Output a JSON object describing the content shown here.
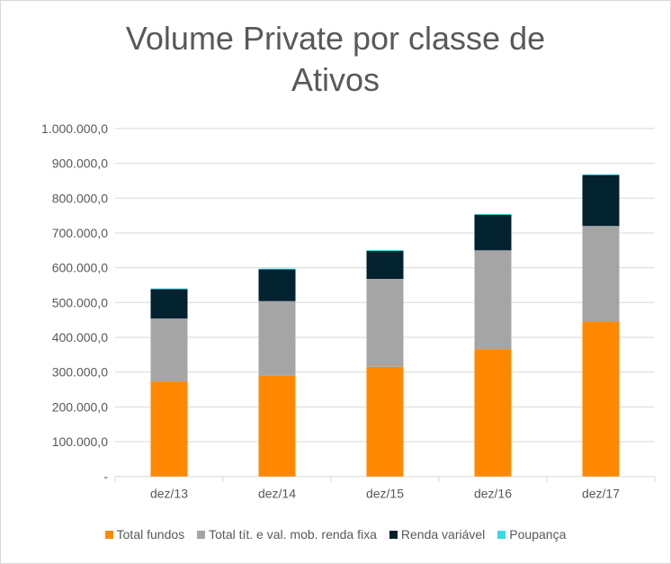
{
  "chart_data": {
    "type": "bar",
    "stacked": true,
    "title_lines": [
      "Volume Private por classe de",
      "Ativos"
    ],
    "categories": [
      "dez/13",
      "dez/14",
      "dez/15",
      "dez/16",
      "dez/17"
    ],
    "series": [
      {
        "name": "Total fundos",
        "color": "#ff8800",
        "values": [
          273000,
          289000,
          315000,
          366000,
          445000
        ]
      },
      {
        "name": "Total tít. e val. mob. renda fixa",
        "color": "#a5a5a5",
        "values": [
          181000,
          215000,
          253000,
          284000,
          275000
        ]
      },
      {
        "name": "Renda variável",
        "color": "#01222e",
        "values": [
          85000,
          92000,
          81000,
          103000,
          147000
        ]
      },
      {
        "name": "Poupança",
        "color": "#3dd6e6",
        "values": [
          1500,
          1500,
          1500,
          1500,
          1500
        ]
      }
    ],
    "ylim": [
      0,
      1000000
    ],
    "yticks": [
      0,
      100000,
      200000,
      300000,
      400000,
      500000,
      600000,
      700000,
      800000,
      900000,
      1000000
    ],
    "ytick_labels": [
      "-",
      "100.000,0",
      "200.000,0",
      "300.000,0",
      "400.000,0",
      "500.000,0",
      "600.000,0",
      "700.000,0",
      "800.000,0",
      "900.000,0",
      "1.000.000,0"
    ],
    "grid": true,
    "legend_position": "bottom"
  }
}
